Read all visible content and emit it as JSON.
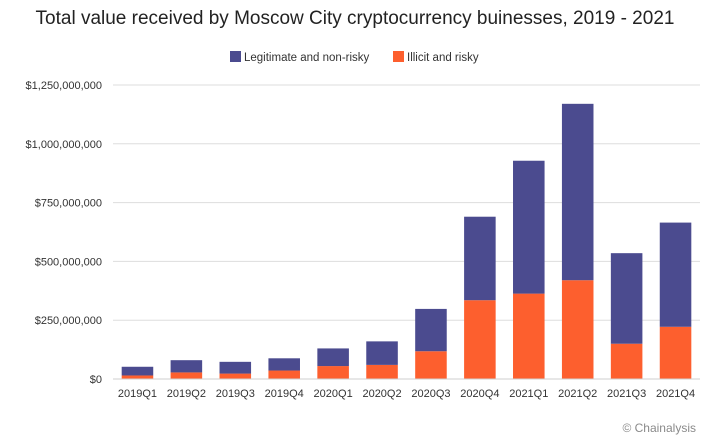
{
  "chart_data": {
    "type": "bar",
    "stacked": true,
    "title": "Total value received by Moscow City cryptocurrency buinesses, 2019 - 2021",
    "categories": [
      "2019Q1",
      "2019Q2",
      "2019Q3",
      "2019Q4",
      "2020Q1",
      "2020Q2",
      "2020Q3",
      "2020Q4",
      "2021Q1",
      "2021Q2",
      "2021Q3",
      "2021Q4"
    ],
    "series": [
      {
        "name": "Illicit and risky",
        "color": "#fd5f2e",
        "values": [
          15000000,
          28000000,
          23000000,
          36000000,
          55000000,
          60000000,
          118000000,
          335000000,
          363000000,
          420000000,
          150000000,
          222000000
        ]
      },
      {
        "name": "Legitimate and non-risky",
        "color": "#4b4b8f",
        "values": [
          37000000,
          52000000,
          50000000,
          52000000,
          75000000,
          100000000,
          180000000,
          355000000,
          565000000,
          750000000,
          385000000,
          443000000
        ]
      }
    ],
    "legend_order": [
      "Legitimate and non-risky",
      "Illicit and risky"
    ],
    "legend_position": "top-center",
    "ylim": [
      0,
      1250000000
    ],
    "yticks": [
      0,
      250000000,
      500000000,
      750000000,
      1000000000,
      1250000000
    ],
    "ytick_labels": [
      "$0",
      "$250,000,000",
      "$500,000,000",
      "$750,000,000",
      "$1,000,000,000",
      "$1,250,000,000"
    ],
    "grid": true,
    "gridline_color": "#dddddd"
  },
  "source": "© Chainalysis"
}
